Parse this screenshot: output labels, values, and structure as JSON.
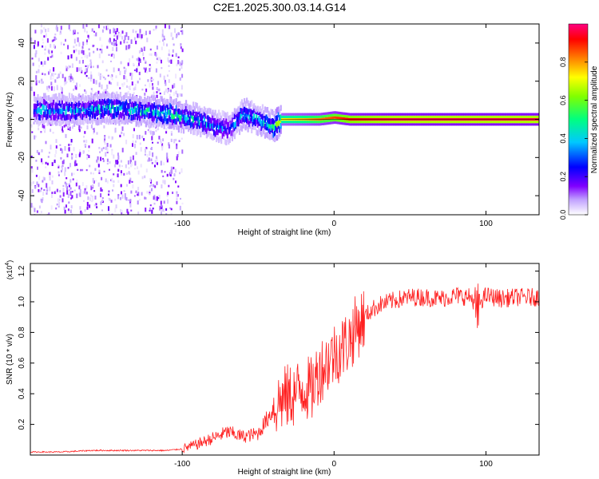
{
  "title": "C2E1.2025.300.03.14.G14",
  "chart_data": [
    {
      "type": "heatmap",
      "title": "C2E1.2025.300.03.14.G14",
      "xlabel": "Height of straight line (km)",
      "ylabel": "Frequency (Hz)",
      "xlim": [
        -200,
        135
      ],
      "ylim": [
        -50,
        50
      ],
      "xticks": [
        -100,
        0,
        100
      ],
      "xtick_labels": [
        "-100",
        "0",
        "100"
      ],
      "yticks": [
        -40,
        -20,
        0,
        20,
        40
      ],
      "ytick_labels": [
        "-40",
        "-20",
        "0",
        "20",
        "40"
      ],
      "colorbar": {
        "label": "Normalized spectral amplitude",
        "range": [
          0,
          1
        ],
        "ticks": [
          0.0,
          0.2,
          0.4,
          0.6,
          0.8
        ],
        "tick_labels": [
          "0.0",
          "0.2",
          "0.4",
          "0.6",
          "0.8"
        ],
        "colors": [
          "#ffffff",
          "#c0a0ff",
          "#8000ff",
          "#0000ff",
          "#00c8ff",
          "#00ff80",
          "#80ff00",
          "#ffff00",
          "#ff8000",
          "#ff0000",
          "#ff0080"
        ]
      },
      "ridge": {
        "x": [
          -170,
          -150,
          -130,
          -110,
          -90,
          -80,
          -70,
          -60,
          -50,
          -40,
          -35,
          -20,
          -10,
          0,
          10,
          20,
          40,
          60,
          80,
          100,
          120,
          135
        ],
        "frequency": [
          5,
          6,
          5,
          3,
          0,
          -3,
          -5,
          3,
          0,
          -4,
          0,
          0,
          0,
          1,
          0,
          0,
          0,
          0,
          0,
          0,
          0,
          0
        ],
        "peak_amplitude": [
          0.4,
          0.45,
          0.45,
          0.5,
          0.45,
          0.4,
          0.35,
          0.45,
          0.45,
          0.5,
          0.7,
          0.75,
          0.8,
          0.85,
          0.9,
          0.92,
          0.95,
          0.95,
          0.95,
          0.95,
          0.95,
          0.95
        ]
      }
    },
    {
      "type": "line",
      "xlabel": "Height of straight line (km)",
      "ylabel": "SNR (10 * v/v)",
      "y_multiplier": "(x10",
      "y_multiplier_exp": "4",
      "y_multiplier_close": ")",
      "xlim": [
        -200,
        135
      ],
      "ylim": [
        0,
        1.25
      ],
      "xticks": [
        -100,
        0,
        100
      ],
      "xtick_labels": [
        "-100",
        "0",
        "100"
      ],
      "yticks": [
        0.2,
        0.4,
        0.6,
        0.8,
        1.0,
        1.2
      ],
      "ytick_labels": [
        "0.2",
        "0.4",
        "0.6",
        "0.8",
        "1.0",
        "1.2"
      ],
      "color": "#ff2020",
      "series": [
        {
          "name": "SNR",
          "x": [
            -200,
            -180,
            -160,
            -140,
            -120,
            -110,
            -100,
            -90,
            -80,
            -70,
            -60,
            -50,
            -45,
            -40,
            -35,
            -30,
            -25,
            -20,
            -15,
            -10,
            -5,
            0,
            5,
            10,
            15,
            20,
            25,
            30,
            40,
            50,
            60,
            70,
            80,
            90,
            94,
            100,
            110,
            120,
            135
          ],
          "y": [
            0.02,
            0.02,
            0.03,
            0.03,
            0.03,
            0.03,
            0.04,
            0.07,
            0.11,
            0.15,
            0.12,
            0.14,
            0.22,
            0.3,
            0.36,
            0.38,
            0.4,
            0.45,
            0.42,
            0.55,
            0.6,
            0.66,
            0.7,
            0.75,
            0.84,
            0.9,
            0.95,
            0.98,
            1.01,
            1.03,
            1.03,
            1.02,
            1.04,
            1.03,
            0.98,
            1.04,
            1.02,
            1.03,
            1.03
          ]
        }
      ]
    }
  ]
}
